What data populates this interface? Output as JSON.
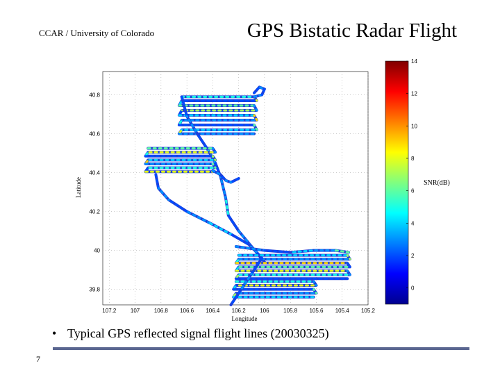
{
  "header": {
    "organization": "CCAR / University of Colorado",
    "title": "GPS Bistatic Radar Flight"
  },
  "caption": {
    "bullet": "•",
    "text": "Typical GPS reflected signal flight lines (20030325)"
  },
  "page_number": "7",
  "colors": {
    "footer_bar": "#5a6690",
    "track_base": "#1f3fd8"
  },
  "chart_data": {
    "type": "scatter",
    "title": "",
    "xlabel": "Longitude",
    "ylabel": "Latitude",
    "xlim": [
      107.25,
      105.2
    ],
    "ylim": [
      39.72,
      40.92
    ],
    "x_reversed": true,
    "x_ticks": [
      "107.2",
      "107",
      "106.8",
      "106.6",
      "106.4",
      "106.2",
      "106",
      "105.8",
      "105.6",
      "105.4",
      "105.2"
    ],
    "x_tick_values": [
      107.2,
      107.0,
      106.8,
      106.6,
      106.4,
      106.2,
      106.0,
      105.8,
      105.6,
      105.4,
      105.2
    ],
    "y_ticks": [
      "39.8",
      "40",
      "40.2",
      "40.4",
      "40.6",
      "40.8"
    ],
    "y_tick_values": [
      39.8,
      40.0,
      40.2,
      40.4,
      40.6,
      40.8
    ],
    "grid": true,
    "colorbar": {
      "label": "SNR(dB)",
      "range": [
        -1,
        14
      ],
      "ticks": [
        "0",
        "2",
        "4",
        "6",
        "8",
        "10",
        "12",
        "14"
      ],
      "tick_values": [
        0,
        2,
        4,
        6,
        8,
        10,
        12,
        14
      ],
      "colormap": "jet"
    },
    "tracks": [
      {
        "lon": [
          106.64,
          106.08,
          106.06,
          106.64,
          106.66,
          106.08,
          106.06,
          106.64,
          106.66,
          106.08,
          106.06,
          106.64,
          106.66,
          106.08,
          106.06,
          106.64,
          106.66,
          106.08
        ],
        "lat": [
          40.79,
          40.79,
          40.77,
          40.77,
          40.745,
          40.745,
          40.72,
          40.72,
          40.695,
          40.695,
          40.67,
          40.67,
          40.645,
          40.645,
          40.62,
          40.62,
          40.6,
          40.6
        ],
        "snr": [
          5,
          8,
          2,
          4,
          6,
          3,
          7,
          2,
          4,
          9,
          3,
          5,
          2,
          6,
          4,
          8,
          3,
          5
        ]
      },
      {
        "lon": [
          106.64,
          106.6,
          106.52,
          106.44,
          106.38,
          106.34,
          106.3,
          106.28,
          106.2,
          106.1,
          106.0
        ],
        "lat": [
          40.79,
          40.69,
          40.6,
          40.52,
          40.45,
          40.38,
          40.27,
          40.18,
          40.1,
          40.02,
          39.94
        ],
        "snr": [
          2,
          3,
          2,
          4,
          2,
          3,
          5,
          2,
          3,
          2,
          3
        ]
      },
      {
        "lon": [
          106.08,
          106.02,
          106.0,
          106.04,
          106.08
        ],
        "lat": [
          40.79,
          40.8,
          40.83,
          40.84,
          40.81
        ],
        "snr": [
          3,
          2,
          3,
          2,
          3
        ]
      },
      {
        "lon": [
          106.9,
          106.4,
          106.38,
          106.9,
          106.92,
          106.4,
          106.38,
          106.9,
          106.92,
          106.4,
          106.38,
          106.9,
          106.92,
          106.4
        ],
        "lat": [
          40.525,
          40.525,
          40.505,
          40.505,
          40.485,
          40.485,
          40.465,
          40.465,
          40.445,
          40.445,
          40.425,
          40.425,
          40.405,
          40.405
        ],
        "snr": [
          6,
          3,
          8,
          5,
          2,
          7,
          4,
          9,
          3,
          6,
          5,
          2,
          8,
          4
        ]
      },
      {
        "lon": [
          106.84,
          106.82,
          106.74,
          106.6,
          106.42,
          106.25,
          106.12,
          106.06,
          106.02
        ],
        "lat": [
          40.39,
          40.32,
          40.26,
          40.2,
          40.14,
          40.08,
          40.03,
          39.99,
          39.96
        ],
        "snr": [
          2,
          3,
          2,
          3,
          4,
          2,
          3,
          2,
          3
        ]
      },
      {
        "lon": [
          106.2,
          106.26,
          106.3,
          106.34,
          106.4
        ],
        "lat": [
          40.37,
          40.35,
          40.36,
          40.39,
          40.41
        ],
        "snr": [
          2,
          3,
          2,
          3,
          2
        ]
      },
      {
        "lon": [
          106.22,
          106.0,
          105.8,
          105.62,
          105.45,
          105.35
        ],
        "lat": [
          40.02,
          40.0,
          39.99,
          40.0,
          40.0,
          39.99
        ],
        "snr": [
          3,
          2,
          4,
          3,
          6,
          2
        ]
      },
      {
        "lon": [
          106.2,
          105.36,
          105.34,
          106.2,
          106.22,
          105.36,
          105.34,
          106.2,
          106.22,
          105.36,
          105.34,
          106.2,
          106.22,
          105.36
        ],
        "lat": [
          39.975,
          39.975,
          39.955,
          39.955,
          39.935,
          39.935,
          39.915,
          39.915,
          39.895,
          39.895,
          39.875,
          39.875,
          39.855,
          39.855
        ],
        "snr": [
          4,
          7,
          3,
          5,
          9,
          2,
          6,
          4,
          8,
          3,
          5,
          7,
          2,
          6
        ]
      },
      {
        "lon": [
          106.22,
          105.62,
          105.6,
          106.22,
          106.24,
          105.62,
          105.6,
          106.22,
          106.24,
          105.62
        ],
        "lat": [
          39.84,
          39.84,
          39.82,
          39.82,
          39.8,
          39.8,
          39.78,
          39.78,
          39.76,
          39.76
        ],
        "snr": [
          5,
          3,
          8,
          4,
          2,
          6,
          3,
          7,
          4,
          5
        ]
      },
      {
        "lon": [
          106.02,
          106.1,
          106.18,
          106.26
        ],
        "lat": [
          39.96,
          39.88,
          39.8,
          39.72
        ],
        "snr": [
          2,
          3,
          2,
          3
        ]
      }
    ]
  }
}
